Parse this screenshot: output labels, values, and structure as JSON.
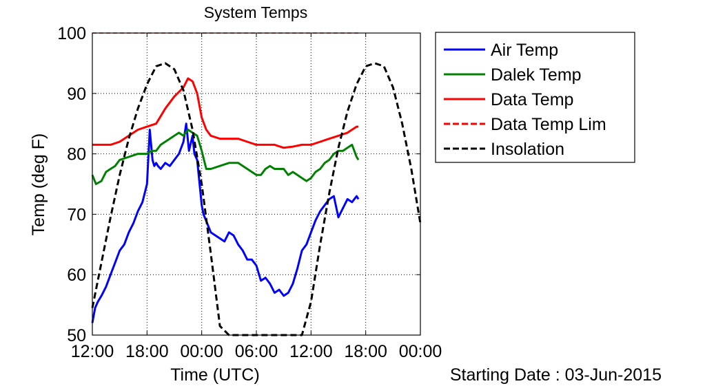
{
  "chart_data": {
    "type": "line",
    "title": "System Temps",
    "xlabel": "Time (UTC)",
    "ylabel": "Temp (deg F)",
    "footnote": "Starting Date : 03-Jun-2015",
    "x_unit": "hours from 12:00 UTC on 03-Jun-2015",
    "xlim": [
      0,
      36
    ],
    "ylim": [
      50,
      100
    ],
    "xticks": [
      0,
      6,
      12,
      18,
      24,
      30,
      36
    ],
    "xtick_labels": [
      "12:00",
      "18:00",
      "00:00",
      "06:00",
      "12:00",
      "18:00",
      "00:00"
    ],
    "yticks": [
      50,
      60,
      70,
      80,
      90,
      100
    ],
    "ytick_labels": [
      "50",
      "60",
      "70",
      "80",
      "90",
      "100"
    ],
    "grid": true,
    "legend_position": "outside-right-top",
    "series": [
      {
        "name": "Air Temp",
        "color": "#0000ff",
        "style": "solid",
        "x": [
          0,
          0.3,
          0.6,
          1,
          1.5,
          2,
          2.5,
          3,
          3.5,
          4,
          4.5,
          5,
          5.5,
          6,
          6.3,
          6.6,
          6.8,
          7.0,
          7.2,
          7.5,
          8,
          8.5,
          9,
          9.5,
          10,
          10.3,
          10.6,
          11,
          11.2,
          11.5,
          12,
          12.2,
          12.6,
          13,
          13.5,
          14,
          14.5,
          15,
          15.5,
          16,
          16.5,
          17,
          17.5,
          18,
          18.5,
          19,
          19.5,
          20,
          20.5,
          21,
          21.5,
          22,
          22.5,
          23,
          23.5,
          24,
          24.5,
          25,
          25.5,
          26,
          26.5,
          27,
          27.5,
          28,
          28.5,
          29,
          29.2
        ],
        "y": [
          52,
          54.5,
          55.5,
          56.5,
          58,
          60,
          62,
          64,
          65,
          67,
          68.5,
          70.5,
          72,
          75,
          84,
          79,
          78,
          78.5,
          78,
          77.5,
          78.5,
          78,
          79,
          80,
          82,
          85,
          80.5,
          83,
          80,
          79,
          71.5,
          70,
          68.5,
          67,
          66.5,
          66,
          65.5,
          67,
          66.5,
          65,
          64,
          62.5,
          62.5,
          61.5,
          59,
          59.5,
          58.5,
          57,
          57.5,
          56.5,
          57,
          58.5,
          61,
          64,
          65,
          67,
          69,
          70.5,
          71.5,
          72.5,
          73,
          69.5,
          71,
          72.5,
          72,
          73,
          72.5
        ]
      },
      {
        "name": "Dalek Temp",
        "color": "#008000",
        "style": "solid",
        "x": [
          0,
          0.4,
          1,
          1.5,
          2,
          2.5,
          3,
          4,
          5,
          6,
          6.5,
          7,
          7.5,
          8,
          8.5,
          9,
          9.5,
          10,
          10.5,
          11,
          11.5,
          12,
          12.5,
          13,
          14,
          15,
          16,
          17,
          18,
          18.5,
          19,
          19.5,
          20,
          21,
          21.5,
          22,
          22.5,
          23,
          23.5,
          24,
          24.5,
          25,
          25.5,
          26,
          26.5,
          27,
          27.5,
          28,
          28.5,
          29,
          29.2
        ],
        "y": [
          76.5,
          75,
          75.5,
          77,
          77.5,
          78,
          79,
          79.5,
          80,
          80,
          80.5,
          80.5,
          81.5,
          82,
          82.5,
          83,
          83.5,
          83,
          84,
          83.5,
          83,
          80.5,
          77.5,
          77.5,
          78,
          78.5,
          78.5,
          77.5,
          76.5,
          76.5,
          77.5,
          78,
          77.5,
          77.5,
          76.5,
          77,
          76.5,
          76,
          75.5,
          76,
          77,
          77.5,
          78.5,
          79,
          80,
          80.5,
          80.5,
          81,
          81.5,
          79.5,
          79
        ]
      },
      {
        "name": "Data Temp",
        "color": "#ff0000",
        "style": "solid",
        "x": [
          0,
          1,
          2,
          3,
          4,
          5,
          6,
          7,
          8,
          9,
          10,
          10.5,
          11,
          11.5,
          12,
          12.5,
          13,
          14,
          15,
          16,
          17,
          18,
          19,
          20,
          21,
          22,
          23,
          24,
          25,
          26,
          27,
          28,
          28.5,
          29,
          29.2
        ],
        "y": [
          81.5,
          81.5,
          81.5,
          82,
          83,
          84,
          84.5,
          85,
          87.5,
          89.5,
          91,
          92.5,
          92,
          90,
          86,
          84,
          83,
          82.5,
          82.5,
          82.5,
          82,
          81.5,
          81.5,
          81.5,
          81,
          81.2,
          81.5,
          81.5,
          82,
          82.5,
          83,
          83.5,
          84,
          84.5,
          84.5
        ]
      },
      {
        "name": "Data Temp Lim",
        "color": "#ff0000",
        "style": "dashed",
        "x": [
          0,
          29.2
        ],
        "y": [
          100,
          100
        ]
      },
      {
        "name": "Insolation",
        "color": "#000000",
        "style": "dashed",
        "x": [
          0,
          1,
          2,
          3,
          4,
          5,
          6,
          7,
          8,
          9,
          10,
          11,
          12,
          13,
          14,
          15,
          16,
          17,
          18,
          19,
          20,
          21,
          22,
          23,
          24,
          25,
          26,
          27,
          28,
          29,
          30,
          31,
          32,
          33,
          34,
          35,
          36
        ],
        "y": [
          54.5,
          62,
          69.5,
          76.5,
          82.5,
          87.5,
          91.5,
          94.5,
          95,
          94,
          90.5,
          84,
          75,
          63.5,
          51.5,
          50,
          50,
          50,
          50,
          50,
          50,
          50,
          50,
          50,
          55.5,
          65,
          73.5,
          81,
          87,
          91.5,
          94.5,
          95,
          94.5,
          91,
          85,
          77.5,
          68.5
        ]
      }
    ]
  }
}
